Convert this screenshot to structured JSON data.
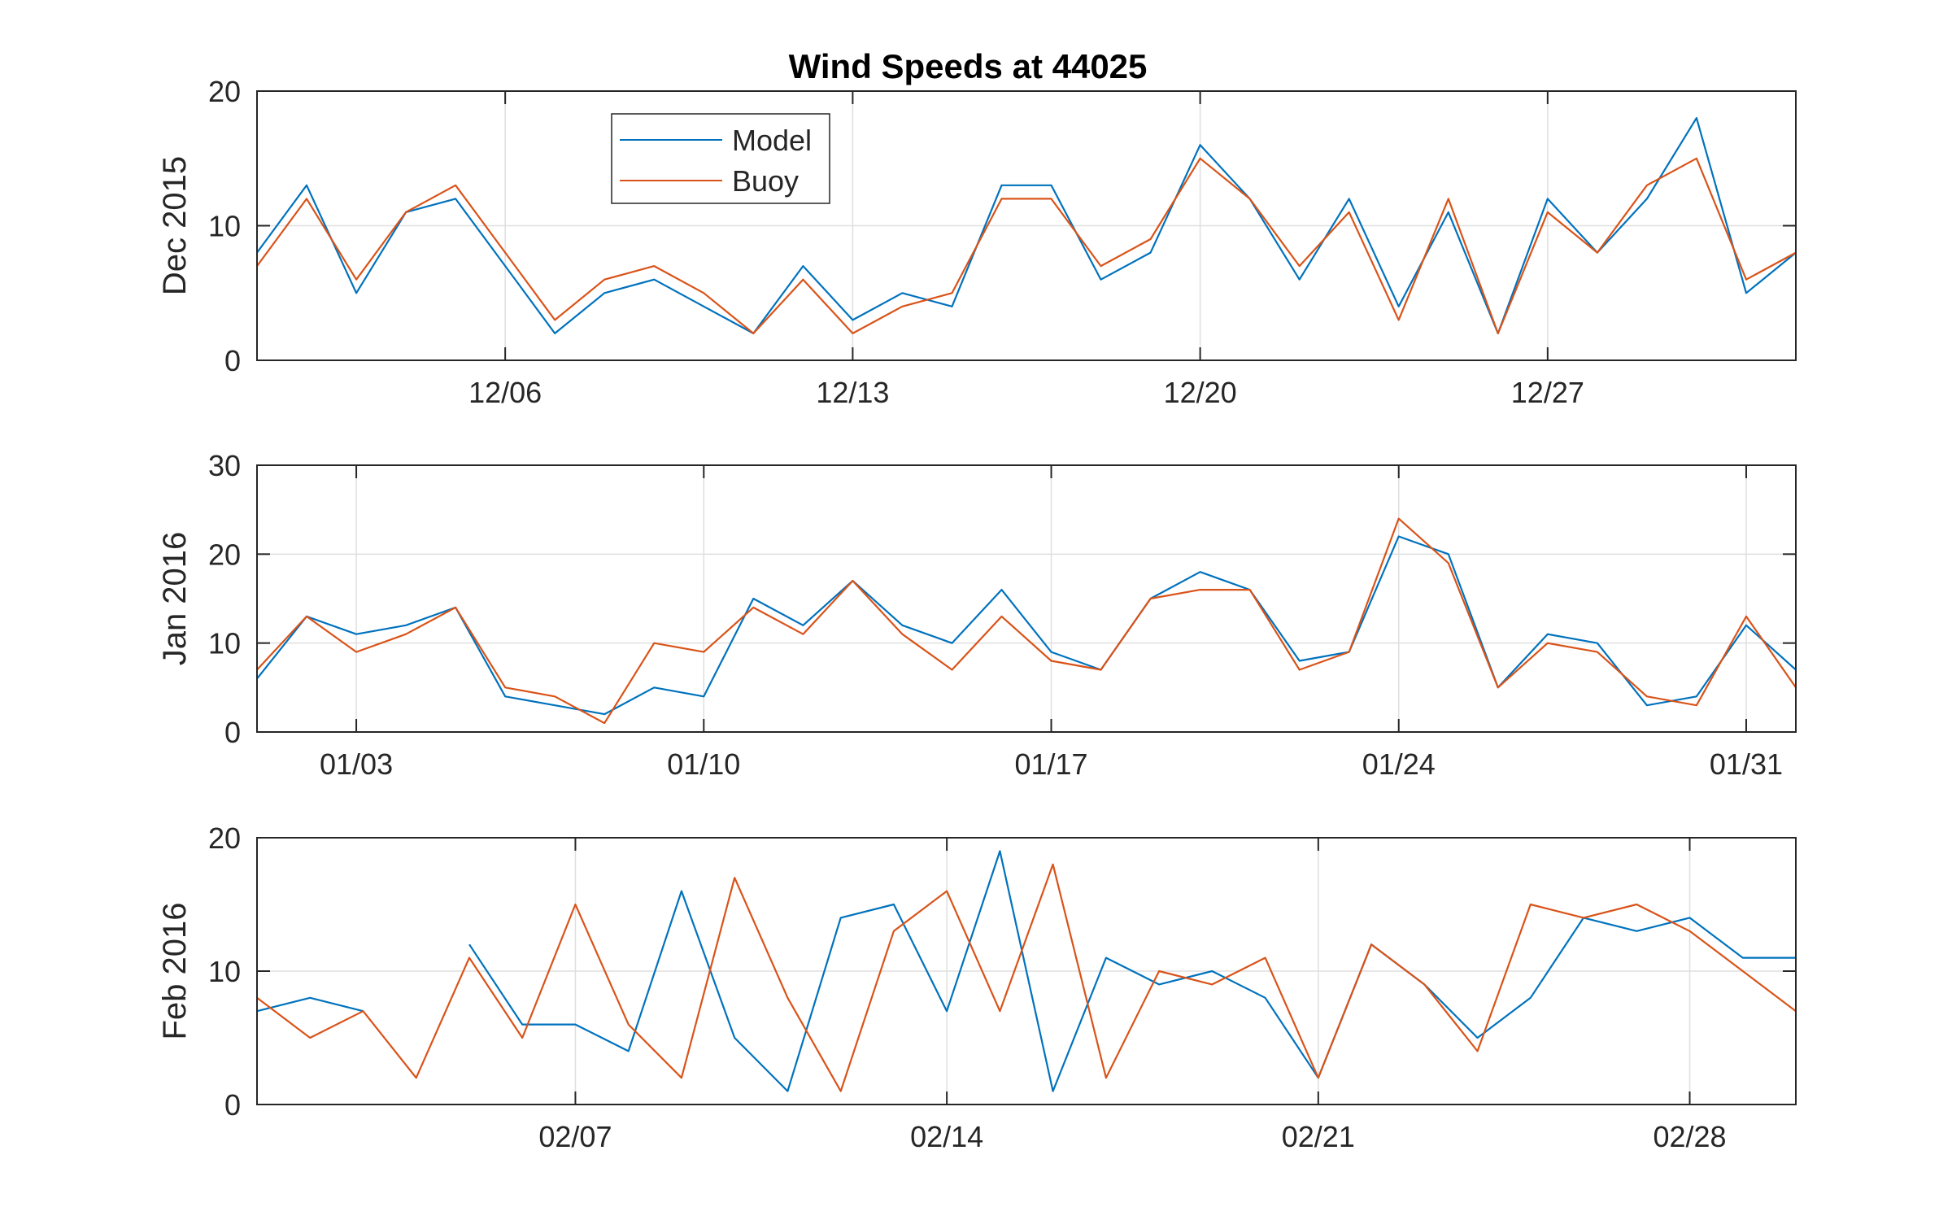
{
  "chart_data": {
    "type": "line",
    "title": "Wind Speeds at 44025",
    "legend": {
      "placement": "top-left",
      "entries": [
        {
          "name": "Model",
          "color": "#0072BD"
        },
        {
          "name": "Buoy",
          "color": "#D95319"
        }
      ]
    },
    "grid": true,
    "panels": [
      {
        "ylabel": "Dec 2015",
        "xlim": [
          "2015-12-01",
          "2016-01-01"
        ],
        "ylim": [
          0,
          20
        ],
        "yticks": [
          0,
          10,
          20
        ],
        "xticks": [
          {
            "date": "2015-12-06",
            "label": "12/06"
          },
          {
            "date": "2015-12-13",
            "label": "12/13"
          },
          {
            "date": "2015-12-20",
            "label": "12/20"
          },
          {
            "date": "2015-12-27",
            "label": "12/27"
          }
        ],
        "x": [
          "2015-12-01",
          "2015-12-02",
          "2015-12-03",
          "2015-12-04",
          "2015-12-05",
          "2015-12-06",
          "2015-12-07",
          "2015-12-08",
          "2015-12-09",
          "2015-12-10",
          "2015-12-11",
          "2015-12-12",
          "2015-12-13",
          "2015-12-14",
          "2015-12-15",
          "2015-12-16",
          "2015-12-17",
          "2015-12-18",
          "2015-12-19",
          "2015-12-20",
          "2015-12-21",
          "2015-12-22",
          "2015-12-23",
          "2015-12-24",
          "2015-12-25",
          "2015-12-26",
          "2015-12-27",
          "2015-12-28",
          "2015-12-29",
          "2015-12-30",
          "2015-12-31",
          "2016-01-01"
        ],
        "series": [
          {
            "name": "Model",
            "values": [
              8,
              13,
              5,
              11,
              12,
              7,
              2,
              5,
              6,
              4,
              2,
              7,
              3,
              5,
              4,
              13,
              13,
              6,
              8,
              16,
              12,
              6,
              12,
              4,
              11,
              2,
              12,
              8,
              12,
              18,
              5,
              8
            ]
          },
          {
            "name": "Buoy",
            "values": [
              7,
              12,
              6,
              11,
              13,
              8,
              3,
              6,
              7,
              5,
              2,
              6,
              2,
              4,
              5,
              12,
              12,
              7,
              9,
              15,
              12,
              7,
              11,
              3,
              12,
              2,
              11,
              8,
              13,
              15,
              6,
              8
            ]
          }
        ]
      },
      {
        "ylabel": "Jan 2016",
        "xlim": [
          "2016-01-01",
          "2016-02-01"
        ],
        "ylim": [
          0,
          30
        ],
        "yticks": [
          0,
          10,
          20,
          30
        ],
        "xticks": [
          {
            "date": "2016-01-03",
            "label": "01/03"
          },
          {
            "date": "2016-01-10",
            "label": "01/10"
          },
          {
            "date": "2016-01-17",
            "label": "01/17"
          },
          {
            "date": "2016-01-24",
            "label": "01/24"
          },
          {
            "date": "2016-01-31",
            "label": "01/31"
          }
        ],
        "x": [
          "2016-01-01",
          "2016-01-02",
          "2016-01-03",
          "2016-01-04",
          "2016-01-05",
          "2016-01-06",
          "2016-01-07",
          "2016-01-08",
          "2016-01-09",
          "2016-01-10",
          "2016-01-11",
          "2016-01-12",
          "2016-01-13",
          "2016-01-14",
          "2016-01-15",
          "2016-01-16",
          "2016-01-17",
          "2016-01-18",
          "2016-01-19",
          "2016-01-20",
          "2016-01-21",
          "2016-01-22",
          "2016-01-23",
          "2016-01-24",
          "2016-01-25",
          "2016-01-26",
          "2016-01-27",
          "2016-01-28",
          "2016-01-29",
          "2016-01-30",
          "2016-01-31",
          "2016-02-01"
        ],
        "series": [
          {
            "name": "Model",
            "values": [
              6,
              13,
              11,
              12,
              14,
              4,
              3,
              2,
              5,
              4,
              15,
              12,
              17,
              12,
              10,
              16,
              9,
              7,
              15,
              18,
              16,
              8,
              9,
              22,
              20,
              5,
              11,
              10,
              3,
              4,
              12,
              7
            ]
          },
          {
            "name": "Buoy",
            "values": [
              7,
              13,
              9,
              11,
              14,
              5,
              4,
              1,
              10,
              9,
              14,
              11,
              17,
              11,
              7,
              13,
              8,
              7,
              15,
              16,
              16,
              7,
              9,
              24,
              19,
              5,
              10,
              9,
              4,
              3,
              13,
              5
            ]
          }
        ]
      },
      {
        "ylabel": "Feb 2016",
        "xlim": [
          "2016-02-01",
          "2016-03-01"
        ],
        "ylim": [
          0,
          20
        ],
        "yticks": [
          0,
          10,
          20
        ],
        "xticks": [
          {
            "date": "2016-02-07",
            "label": "02/07"
          },
          {
            "date": "2016-02-14",
            "label": "02/14"
          },
          {
            "date": "2016-02-21",
            "label": "02/21"
          },
          {
            "date": "2016-02-28",
            "label": "02/28"
          }
        ],
        "x": [
          "2016-02-01",
          "2016-02-02",
          "2016-02-03",
          "2016-02-04",
          "2016-02-05",
          "2016-02-06",
          "2016-02-07",
          "2016-02-08",
          "2016-02-09",
          "2016-02-10",
          "2016-02-11",
          "2016-02-12",
          "2016-02-13",
          "2016-02-14",
          "2016-02-15",
          "2016-02-16",
          "2016-02-17",
          "2016-02-18",
          "2016-02-19",
          "2016-02-20",
          "2016-02-21",
          "2016-02-22",
          "2016-02-23",
          "2016-02-24",
          "2016-02-25",
          "2016-02-26",
          "2016-02-27",
          "2016-02-28",
          "2016-02-29",
          "2016-03-01"
        ],
        "series": [
          {
            "name": "Model",
            "values": [
              7,
              8,
              7,
              null,
              12,
              6,
              6,
              4,
              16,
              5,
              1,
              14,
              15,
              7,
              19,
              1,
              11,
              9,
              10,
              8,
              2,
              12,
              9,
              5,
              8,
              14,
              13,
              14,
              11,
              11
            ]
          },
          {
            "name": "Buoy",
            "values": [
              8,
              5,
              7,
              2,
              11,
              5,
              15,
              6,
              2,
              17,
              8,
              1,
              13,
              16,
              7,
              18,
              2,
              10,
              9,
              11,
              2,
              12,
              9,
              4,
              15,
              14,
              15,
              13,
              10,
              7
            ]
          }
        ]
      }
    ]
  }
}
